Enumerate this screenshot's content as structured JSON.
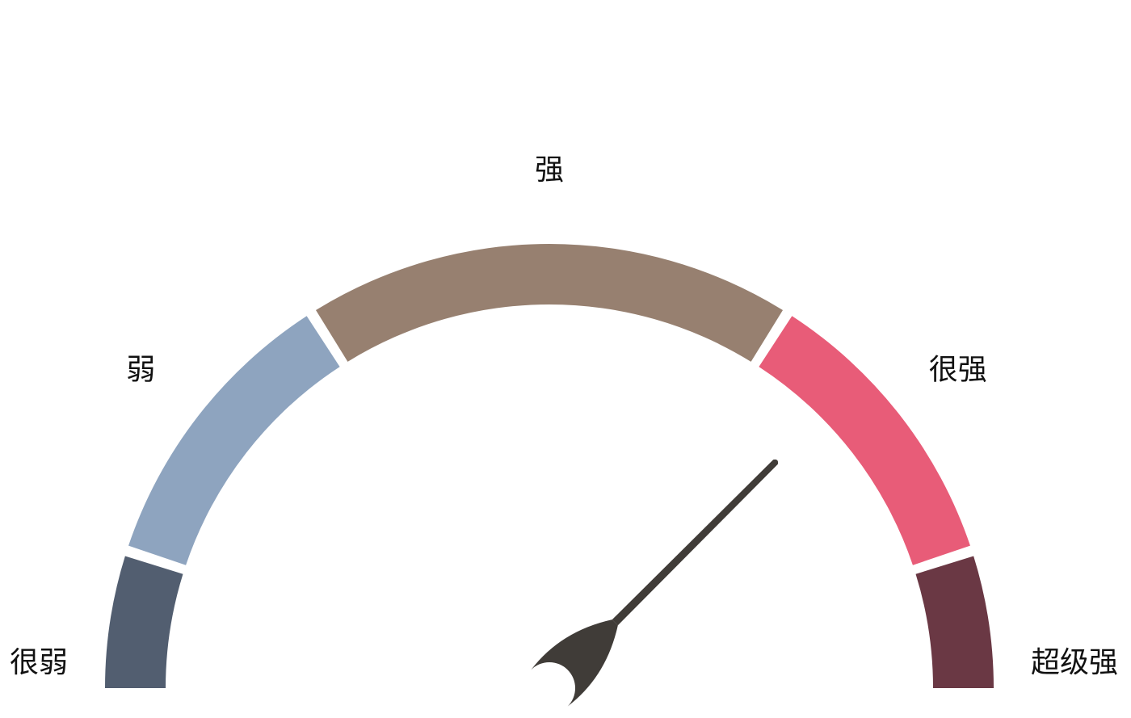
{
  "chart_data": {
    "type": "gauge",
    "title": "",
    "range": [
      0,
      5
    ],
    "value": 3.75,
    "bands": [
      {
        "label": "很弱",
        "from": 0,
        "to": 0.5,
        "color": "#525e70"
      },
      {
        "label": "弱",
        "from": 0.5,
        "to": 1.6,
        "color": "#8ea4bf"
      },
      {
        "label": "强",
        "from": 1.6,
        "to": 3.4,
        "color": "#978070"
      },
      {
        "label": "很强",
        "from": 3.4,
        "to": 4.5,
        "color": "#e85c78"
      },
      {
        "label": "超级强",
        "from": 4.5,
        "to": 5,
        "color": "#6a3844"
      }
    ],
    "needle_color": "#403c38"
  }
}
